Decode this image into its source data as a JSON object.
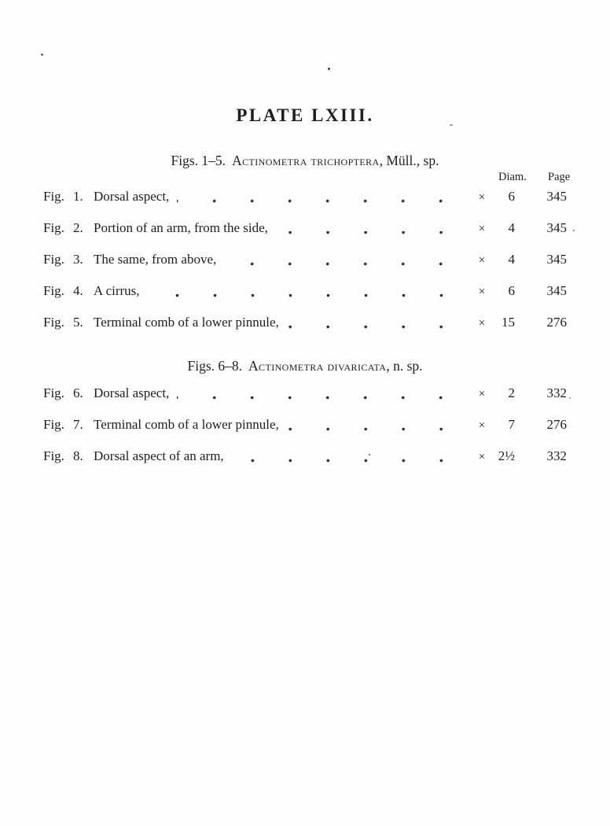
{
  "page": {
    "title": "PLATE LXIII.",
    "background": "#fefefe",
    "text_color": "#1e1e1e"
  },
  "labels": {
    "fig": "Fig.",
    "times": "×"
  },
  "columns": {
    "diam": "Diam.",
    "page": "Page"
  },
  "sections": [
    {
      "heading": {
        "prefix": "Figs. 1–5.",
        "species": "Actinometra trichoptera",
        "suffix": ", Müll., sp."
      },
      "rows": [
        {
          "num": "1.",
          "description": "Dorsal aspect,",
          "diam": "6",
          "page": "345"
        },
        {
          "num": "2.",
          "description": "Portion of an arm, from the side,",
          "diam": "4",
          "page": "345"
        },
        {
          "num": "3.",
          "description": "The same, from above,",
          "diam": "4",
          "page": "345"
        },
        {
          "num": "4.",
          "description": "A cirrus,",
          "diam": "6",
          "page": "345"
        },
        {
          "num": "5.",
          "description": "Terminal comb of a lower pinnule,",
          "diam": "15",
          "page": "276"
        }
      ]
    },
    {
      "heading": {
        "prefix": "Figs. 6–8.",
        "species": "Actinometra divaricata",
        "suffix": ", n. sp."
      },
      "rows": [
        {
          "num": "6.",
          "description": "Dorsal aspect,",
          "diam": "2",
          "page": "332"
        },
        {
          "num": "7.",
          "description": "Terminal comb of a lower pinnule,",
          "diam": "7",
          "page": "276"
        },
        {
          "num": "8.",
          "description": "Dorsal aspect of an arm,",
          "diam": "2½",
          "page": "332"
        }
      ]
    }
  ]
}
